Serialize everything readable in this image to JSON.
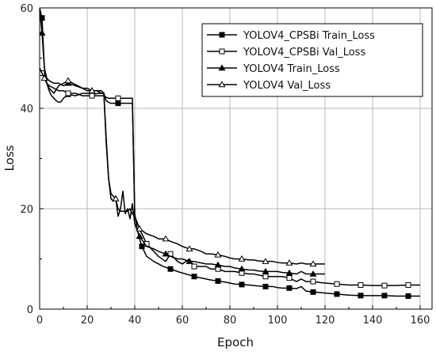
{
  "chart_data": {
    "type": "line",
    "title": "",
    "xlabel": "Epoch",
    "ylabel": "Loss",
    "xlim": [
      0,
      165
    ],
    "ylim": [
      0,
      60
    ],
    "x_ticks": [
      "0",
      "20",
      "40",
      "60",
      "80",
      "100",
      "120",
      "140",
      "160"
    ],
    "y_ticks": [
      "0",
      "20",
      "40",
      "60"
    ],
    "grid": true,
    "legend_position": "top-right",
    "series": [
      {
        "name": "YOLOV4_CPSBi  Train_Loss",
        "marker": "filled-square",
        "x": [
          0,
          1,
          2,
          3,
          4,
          5,
          6,
          7,
          8,
          9,
          10,
          12,
          15,
          18,
          20,
          22,
          25,
          27,
          28,
          29,
          30,
          31,
          33,
          35,
          37,
          38,
          39,
          40,
          41,
          42,
          43,
          45,
          48,
          50,
          52,
          55,
          58,
          60,
          63,
          65,
          68,
          70,
          72,
          75,
          78,
          80,
          82,
          85,
          88,
          90,
          92,
          95,
          98,
          100,
          102,
          105,
          108,
          110,
          112,
          115,
          118,
          120,
          125,
          130,
          135,
          140,
          145,
          150,
          155,
          160
        ],
        "y": [
          60,
          58,
          48,
          45,
          43.5,
          42.5,
          42,
          41.5,
          41.2,
          41.3,
          42,
          42.8,
          42.5,
          43,
          43,
          42.8,
          43,
          43,
          41.5,
          41.2,
          41,
          41,
          41,
          41,
          41,
          41,
          41,
          19,
          16,
          14,
          12.5,
          10.5,
          9.5,
          9,
          8.5,
          8,
          7.5,
          7.2,
          6.8,
          6.5,
          6.2,
          6,
          5.8,
          5.6,
          5.4,
          5.2,
          5,
          4.9,
          4.8,
          4.7,
          4.6,
          4.5,
          4.5,
          4.3,
          4.2,
          4.2,
          4.1,
          4.5,
          3.6,
          3.4,
          3.3,
          3.2,
          3.0,
          2.8,
          2.7,
          2.7,
          2.7,
          2.6,
          2.6,
          2.6
        ]
      },
      {
        "name": "YOLOV4_CPSBi  Val_Loss",
        "marker": "open-square",
        "x": [
          0,
          1,
          2,
          3,
          4,
          6,
          8,
          10,
          12,
          15,
          18,
          20,
          22,
          25,
          27,
          28,
          29,
          30,
          31,
          33,
          35,
          37,
          38,
          39,
          40,
          42,
          45,
          48,
          50,
          53,
          55,
          58,
          60,
          63,
          65,
          68,
          70,
          72,
          75,
          78,
          80,
          82,
          85,
          88,
          90,
          92,
          95,
          98,
          100,
          102,
          105,
          108,
          110,
          112,
          115,
          118,
          120,
          125,
          130,
          135,
          140,
          145,
          150,
          155,
          160
        ],
        "y": [
          48,
          47,
          46,
          45,
          44.5,
          44,
          43.5,
          43.5,
          43,
          43,
          42.5,
          42.5,
          42.5,
          42.5,
          42.5,
          42.2,
          42,
          42,
          42,
          42,
          42,
          42,
          42,
          42,
          18.5,
          16,
          13,
          11.5,
          10.5,
          9.5,
          11,
          9.5,
          9,
          10,
          8.5,
          8.5,
          8.5,
          8,
          8,
          7.5,
          7.5,
          7.5,
          7.2,
          7,
          7,
          6.8,
          6.5,
          6.5,
          6.5,
          6.5,
          6.2,
          5.5,
          6.0,
          5.5,
          5.5,
          5.3,
          5.2,
          5.0,
          4.8,
          4.8,
          4.7,
          4.7,
          4.7,
          4.8,
          4.8
        ]
      },
      {
        "name": "YOLOV4  Train_Loss",
        "marker": "filled-triangle",
        "x": [
          0,
          1,
          2,
          3,
          4,
          6,
          8,
          10,
          12,
          15,
          18,
          20,
          22,
          25,
          26,
          27,
          28,
          29,
          30,
          31,
          32,
          33,
          34,
          35,
          36,
          37,
          38,
          39,
          40,
          42,
          45,
          48,
          50,
          53,
          55,
          58,
          60,
          63,
          65,
          68,
          70,
          72,
          75,
          78,
          80,
          82,
          85,
          88,
          90,
          92,
          95,
          98,
          100,
          102,
          105,
          108,
          110,
          112,
          115,
          118,
          120
        ],
        "y": [
          60,
          55,
          48,
          46,
          45.5,
          45,
          45,
          44.5,
          45,
          44.5,
          44,
          43.5,
          43.5,
          43.5,
          43.5,
          43,
          34,
          26,
          22,
          21.5,
          22,
          18.5,
          20,
          23.5,
          19,
          20,
          18,
          21,
          17,
          14.5,
          12.5,
          12,
          11.5,
          11,
          10.5,
          10,
          10,
          9.5,
          9.5,
          9.2,
          9,
          9,
          8.8,
          8.5,
          8.5,
          8.2,
          8,
          7.8,
          7.8,
          7.6,
          7.5,
          7.5,
          7.5,
          7.3,
          7.2,
          7.0,
          7.5,
          7.0,
          7.0,
          7.0,
          7.0
        ]
      },
      {
        "name": "YOLOV4  Val_Loss",
        "marker": "open-triangle",
        "x": [
          0,
          2,
          4,
          6,
          8,
          10,
          12,
          14,
          16,
          18,
          20,
          22,
          24,
          26,
          27,
          28,
          29,
          30,
          31,
          32,
          33,
          34,
          35,
          36,
          37,
          38,
          39,
          40,
          42,
          45,
          48,
          50,
          53,
          55,
          58,
          60,
          63,
          65,
          68,
          70,
          72,
          75,
          78,
          80,
          82,
          85,
          88,
          90,
          92,
          95,
          98,
          100,
          102,
          105,
          108,
          110,
          112,
          115,
          118,
          120
        ],
        "y": [
          48,
          46,
          44,
          43,
          44.5,
          45,
          45.5,
          45,
          44.5,
          44,
          44,
          43.5,
          43.5,
          43,
          43,
          33,
          26,
          23,
          22.5,
          22,
          20,
          19.5,
          19.5,
          19.5,
          19.5,
          20,
          19,
          18.5,
          16,
          15,
          14.5,
          14,
          14,
          13.5,
          13,
          12.5,
          12,
          12,
          11.5,
          11,
          11,
          10.8,
          10.5,
          10.2,
          10,
          10,
          9.8,
          9.8,
          9.6,
          9.5,
          9.5,
          9.3,
          9.2,
          9.2,
          9.0,
          9.2,
          9.0,
          9.0,
          9.0,
          9.0
        ]
      }
    ]
  }
}
